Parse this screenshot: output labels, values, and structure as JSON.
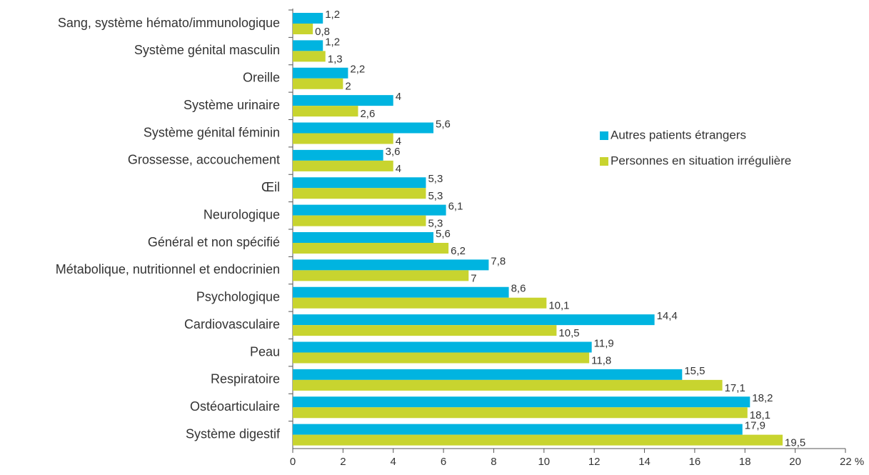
{
  "chart_data": {
    "type": "barh",
    "categories": [
      "Sang, système hémato/immunologique",
      "Système génital masculin",
      "Oreille",
      "Système urinaire",
      "Système génital féminin",
      "Grossesse, accouchement",
      "Œil",
      "Neurologique",
      "Général et non spécifié",
      "Métabolique, nutritionnel et endocrinien",
      "Psychologique",
      "Cardiovasculaire",
      "Peau",
      "Respiratoire",
      "Ostéoarticulaire",
      "Système digestif"
    ],
    "series": [
      {
        "name": "Autres patients étrangers",
        "color": "#00b4e0",
        "values": [
          1.2,
          1.2,
          2.2,
          4,
          5.6,
          3.6,
          5.3,
          6.1,
          5.6,
          7.8,
          8.6,
          14.4,
          11.9,
          15.5,
          18.2,
          17.9
        ],
        "value_labels": [
          "1,2",
          "1,2",
          "2,2",
          "4",
          "5,6",
          "3,6",
          "5,3",
          "6,1",
          "5,6",
          "7,8",
          "8,6",
          "14,4",
          "11,9",
          "15,5",
          "18,2",
          "17,9"
        ]
      },
      {
        "name": "Personnes en situation irrégulière",
        "color": "#c8d42f",
        "values": [
          0.8,
          1.3,
          2,
          2.6,
          4,
          4,
          5.3,
          5.3,
          6.2,
          7,
          10.1,
          10.5,
          11.8,
          17.1,
          18.1,
          19.5
        ],
        "value_labels": [
          "0,8",
          "1,3",
          "2",
          "2,6",
          "4",
          "4",
          "5,3",
          "5,3",
          "6,2",
          "7",
          "10,1",
          "10,5",
          "11,8",
          "17,1",
          "18,1",
          "19,5"
        ]
      }
    ],
    "xlim": [
      0,
      22
    ],
    "xticks": [
      0,
      2,
      4,
      6,
      8,
      10,
      12,
      14,
      16,
      18,
      20,
      {
        "value": 22,
        "label": "22 %"
      }
    ],
    "legend": "right"
  }
}
